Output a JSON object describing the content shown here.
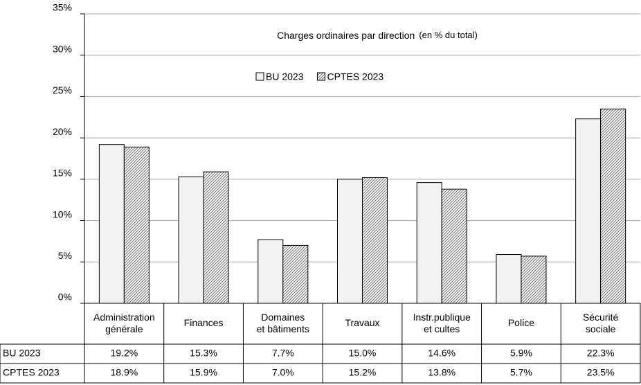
{
  "chart_data": {
    "type": "bar",
    "title": "Charges ordinaires par direction",
    "subtitle": "(en % du total)",
    "categories": [
      "Administration\ngénérale",
      "Finances",
      "Domaines\net bâtiments",
      "Travaux",
      "Instr.publique\net cultes",
      "Police",
      "Sécurité\nsociale"
    ],
    "series": [
      {
        "name": "BU 2023",
        "color": "#f2f2f2",
        "values": [
          19.2,
          15.3,
          7.7,
          15.0,
          14.6,
          5.9,
          22.3
        ],
        "value_labels": [
          "19.2%",
          "15.3%",
          "7.7%",
          "15.0%",
          "14.6%",
          "5.9%",
          "22.3%"
        ]
      },
      {
        "name": "CPTES 2023",
        "color": "#ffffff",
        "pattern": "hatch",
        "values": [
          18.9,
          15.9,
          7.0,
          15.2,
          13.8,
          5.7,
          23.5
        ],
        "value_labels": [
          "18.9%",
          "15.9%",
          "7.0%",
          "15.2%",
          "13.8%",
          "5.7%",
          "23.5%"
        ]
      }
    ],
    "ylim": [
      0,
      35
    ],
    "yticks": [
      {
        "value": 0,
        "label": "0%"
      },
      {
        "value": 5,
        "label": "5%"
      },
      {
        "value": 10,
        "label": "10%"
      },
      {
        "value": 15,
        "label": "15%"
      },
      {
        "value": 20,
        "label": "20%"
      },
      {
        "value": 25,
        "label": "25%"
      },
      {
        "value": 30,
        "label": "30%"
      },
      {
        "value": 35,
        "label": "35%"
      }
    ],
    "grid": true,
    "legend": "top"
  }
}
